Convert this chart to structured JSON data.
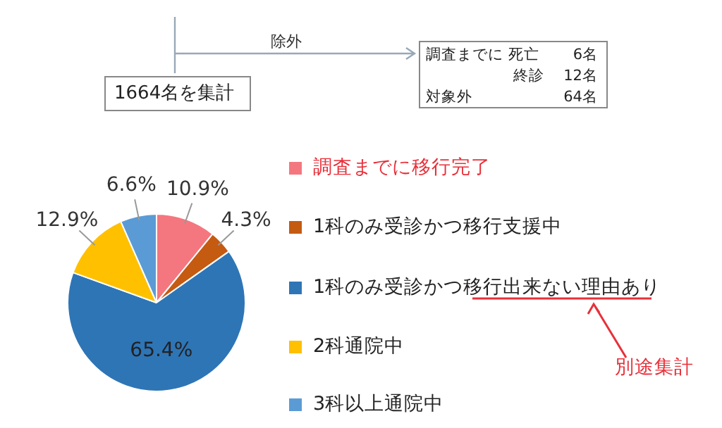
{
  "chart_data": {
    "type": "pie",
    "categories": [
      "調査までに移行完了",
      "1科のみ受診かつ移行支援中",
      "1科のみ受診かつ移行出来ない理由あり",
      "2科通院中",
      "3科以上通院中"
    ],
    "values": [
      10.9,
      4.3,
      65.4,
      12.9,
      6.6
    ],
    "colors": [
      "#f4777f",
      "#c55a11",
      "#2e75b6",
      "#ffc000",
      "#5b9bd5"
    ],
    "value_labels": [
      "10.9%",
      "4.3%",
      "65.4%",
      "12.9%",
      "6.6%"
    ],
    "legend": "right",
    "annotations": [
      "除外",
      "1664名を集計",
      "調査までに 死亡",
      "6名",
      "終診",
      "12名",
      "対象外",
      "64名",
      "別途集計"
    ]
  }
}
